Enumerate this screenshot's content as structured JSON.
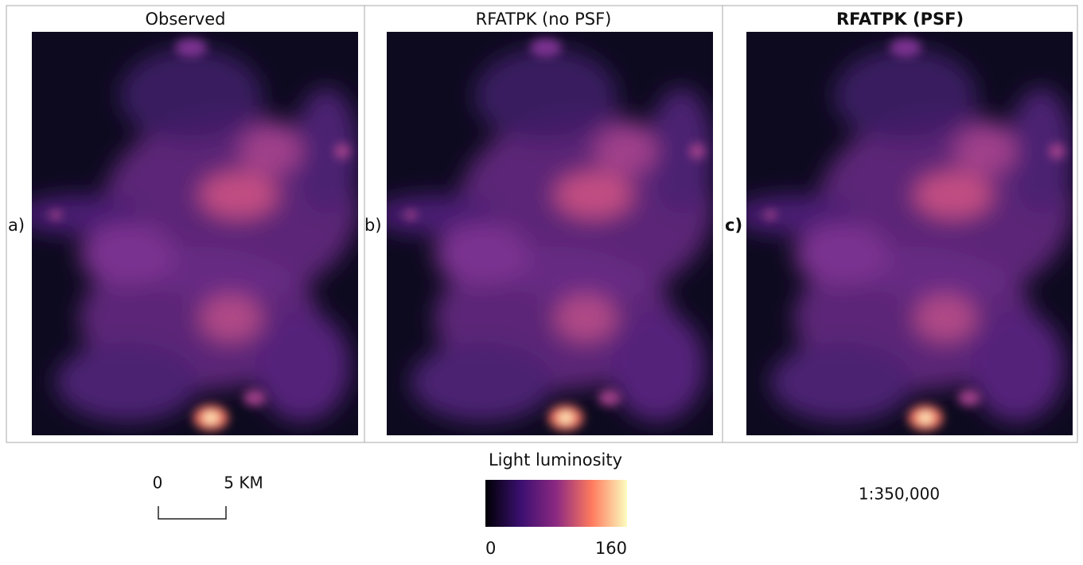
{
  "panels": [
    {
      "title": "Observed",
      "label": "a)",
      "bold": false
    },
    {
      "title": "RFATPK (no PSF)",
      "label": "b)",
      "bold": false
    },
    {
      "title": "RFATPK (PSF)",
      "label": "c)",
      "bold": true
    }
  ],
  "scale_bar": {
    "start": "0",
    "end": "5 KM"
  },
  "legend": {
    "title": "Light luminosity",
    "ticks": [
      0,
      160
    ]
  },
  "scale": "1:350,000"
}
